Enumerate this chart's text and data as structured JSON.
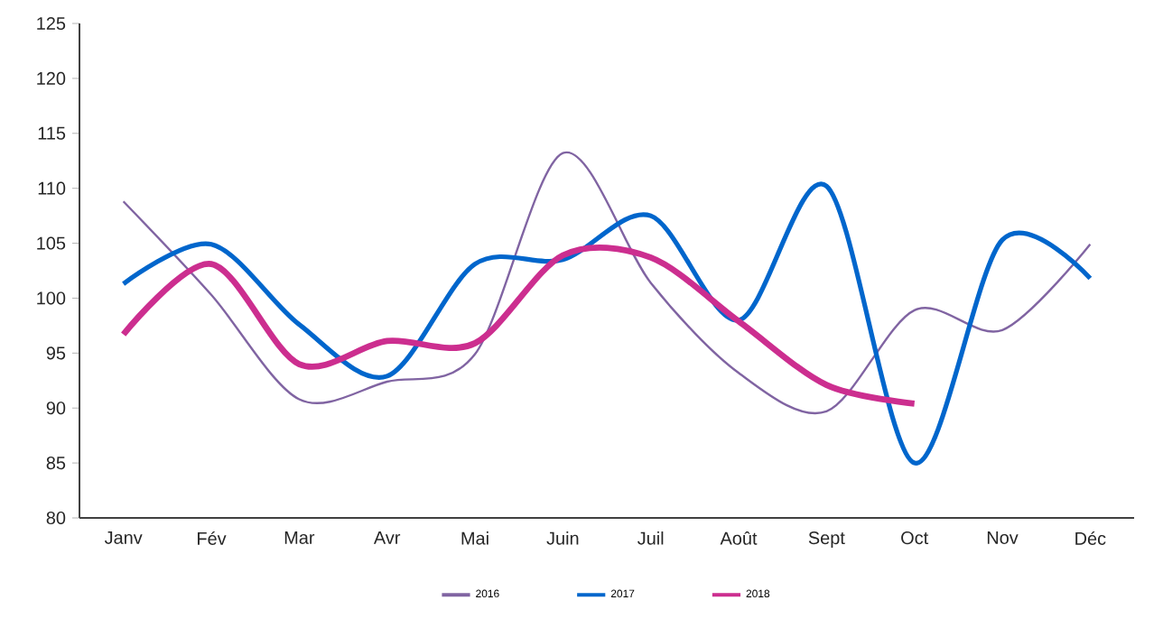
{
  "chart_data": {
    "type": "line",
    "categories": [
      "Janv",
      "Fév",
      "Mar",
      "Avr",
      "Mai",
      "Juin",
      "Juil",
      "Août",
      "Sept",
      "Oct",
      "Nov",
      "Déc"
    ],
    "series": [
      {
        "name": "2016",
        "color": "#8064a2",
        "values": [
          108.8,
          100.3,
          90.8,
          92.4,
          94.9,
          113.2,
          101.4,
          93.2,
          89.7,
          98.9,
          97.1,
          104.9
        ]
      },
      {
        "name": "2017",
        "color": "#0066cc",
        "values": [
          101.3,
          104.9,
          97.6,
          92.9,
          103.1,
          103.5,
          107.5,
          98,
          110.2,
          85,
          105.3,
          101.8
        ]
      },
      {
        "name": "2018",
        "color": "#cc2e8f",
        "values": [
          96.7,
          103.1,
          94,
          96.1,
          95.9,
          103.9,
          103.7,
          97.9,
          92.1,
          90.4,
          null,
          null
        ]
      }
    ],
    "ylim": [
      80,
      125
    ],
    "yticks": [
      80,
      85,
      90,
      95,
      100,
      105,
      110,
      115,
      120,
      125
    ],
    "grid": false,
    "legend": "bottom",
    "marker": "none",
    "line_style": "solid"
  }
}
